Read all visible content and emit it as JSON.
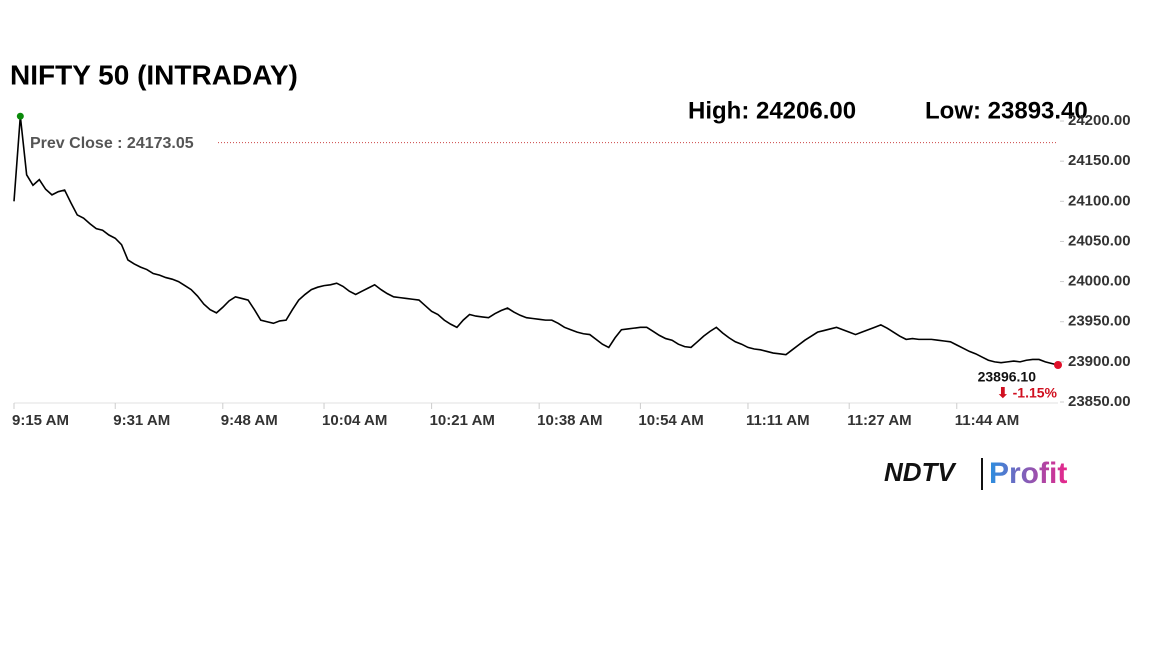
{
  "chart_data": {
    "type": "line",
    "title": "NIFTY 50 (INTRADAY)",
    "color": "#000000",
    "high": {
      "value": 24206,
      "label": "High: 24206.00"
    },
    "low": {
      "value": 23893.4,
      "label": "Low: 23893.40"
    },
    "prev_close": {
      "value": 24173.05,
      "label": "Prev Close : 24173.05"
    },
    "last": {
      "value": 23896.1,
      "label": "23896.10"
    },
    "change": {
      "value": -1.15,
      "label": "⬇ -1.15%"
    },
    "categories": [
      "9:15 AM",
      null,
      null,
      null,
      null,
      null,
      null,
      null,
      null,
      null,
      null,
      null,
      null,
      null,
      null,
      null,
      "9:31 AM",
      null,
      null,
      null,
      null,
      null,
      null,
      null,
      null,
      null,
      null,
      null,
      null,
      null,
      null,
      null,
      null,
      "9:48 AM",
      null,
      null,
      null,
      null,
      null,
      null,
      null,
      null,
      null,
      null,
      null,
      null,
      null,
      null,
      null,
      "10:04 AM",
      null,
      null,
      null,
      null,
      null,
      null,
      null,
      null,
      null,
      null,
      null,
      null,
      null,
      null,
      null,
      null,
      "10:21 AM",
      null,
      null,
      null,
      null,
      null,
      null,
      null,
      null,
      null,
      null,
      null,
      null,
      null,
      null,
      null,
      null,
      "10:38 AM",
      null,
      null,
      null,
      null,
      null,
      null,
      null,
      null,
      null,
      null,
      null,
      null,
      null,
      null,
      null,
      "10:54 AM",
      null,
      null,
      null,
      null,
      null,
      null,
      null,
      null,
      null,
      null,
      null,
      null,
      null,
      null,
      null,
      null,
      "11:11 AM",
      null,
      null,
      null,
      null,
      null,
      null,
      null,
      null,
      null,
      null,
      null,
      null,
      null,
      null,
      null,
      "11:27 AM",
      null,
      null,
      null,
      null,
      null,
      null,
      null,
      null,
      null,
      null,
      null,
      null,
      null,
      null,
      null,
      null,
      "11:44 AM",
      null,
      null,
      null,
      null,
      null,
      null,
      null,
      null,
      null,
      null,
      null,
      null,
      null,
      null,
      null,
      null
    ],
    "values": [
      24100,
      24206,
      24133,
      24120,
      24127,
      24115,
      24108,
      24112,
      24114,
      24098,
      24083,
      24079,
      24072,
      24066,
      24064,
      24058,
      24054,
      24046,
      24027,
      24022,
      24018,
      24015,
      24010,
      24008,
      24005,
      24003,
      24000,
      23995,
      23990,
      23982,
      23972,
      23965,
      23961,
      23968,
      23976,
      23981,
      23979,
      23977,
      23965,
      23952,
      23950,
      23948,
      23951,
      23952,
      23965,
      23977,
      23984,
      23990,
      23993,
      23995,
      23996,
      23998,
      23994,
      23988,
      23984,
      23988,
      23992,
      23996,
      23990,
      23985,
      23981,
      23980,
      23979,
      23978,
      23977,
      23970,
      23963,
      23959,
      23952,
      23947,
      23943,
      23952,
      23959,
      23957,
      23956,
      23955,
      23960,
      23964,
      23967,
      23962,
      23958,
      23955,
      23954,
      23953,
      23952,
      23952,
      23948,
      23943,
      23940,
      23937,
      23935,
      23934,
      23928,
      23922,
      23918,
      23930,
      23940,
      23941,
      23942,
      23943,
      23943,
      23938,
      23933,
      23929,
      23927,
      23922,
      23919,
      23918,
      23925,
      23932,
      23938,
      23943,
      23936,
      23930,
      23925,
      23922,
      23918,
      23916,
      23915,
      23913,
      23911,
      23910,
      23909,
      23915,
      23921,
      23927,
      23932,
      23937,
      23939,
      23941,
      23943,
      23940,
      23937,
      23934,
      23937,
      23940,
      23943,
      23946,
      23942,
      23937,
      23932,
      23928,
      23929,
      23928,
      23928,
      23928,
      23927,
      23926,
      23925,
      23921,
      23917,
      23913,
      23910,
      23906,
      23902,
      23900,
      23899,
      23900,
      23901,
      23900,
      23902,
      23903,
      23903,
      23900,
      23898,
      23896.1
    ],
    "ylim": [
      23850,
      24210
    ],
    "yticks": [
      {
        "value": 23850,
        "label": "23850.00"
      },
      {
        "value": 23900,
        "label": "23900.00"
      },
      {
        "value": 23950,
        "label": "23950.00"
      },
      {
        "value": 24000,
        "label": "24000.00"
      },
      {
        "value": 24050,
        "label": "24050.00"
      },
      {
        "value": 24100,
        "label": "24100.00"
      },
      {
        "value": 24150,
        "label": "24150.00"
      },
      {
        "value": 24200,
        "label": "24200.00"
      }
    ]
  },
  "logo": {
    "brand": "NDTV",
    "product": "Profit"
  }
}
